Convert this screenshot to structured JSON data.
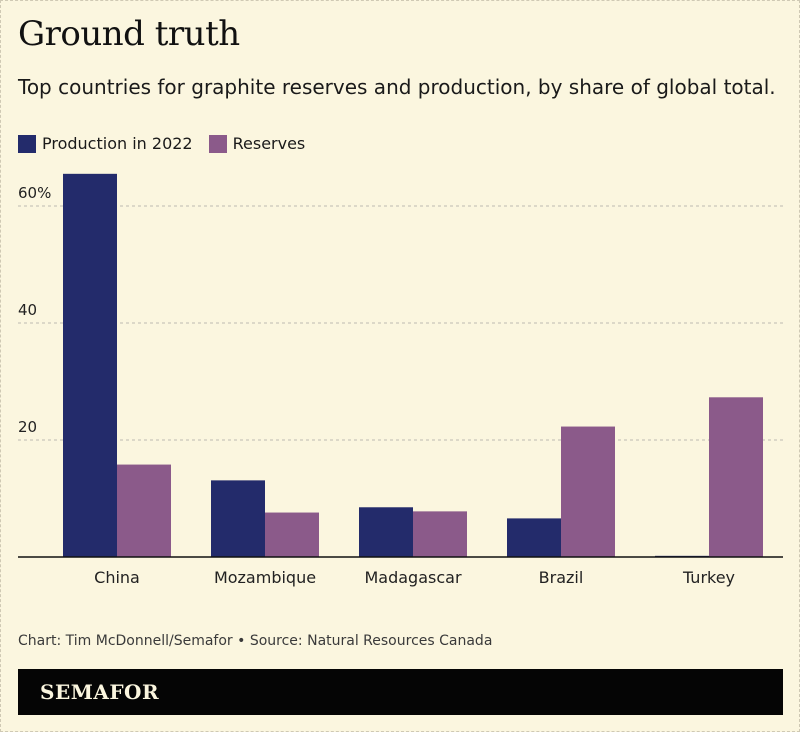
{
  "title": "Ground truth",
  "subtitle": "Top countries for graphite reserves and production, by share of global total.",
  "colors": {
    "background": "#fbf6df",
    "production": "#232b6b",
    "reserves": "#8b5a8a",
    "grid": "#bdbab0"
  },
  "legend": {
    "production_label": "Production in 2022",
    "reserves_label": "Reserves"
  },
  "credit": "Chart: Tim McDonnell/Semafor • Source: Natural Resources Canada",
  "brand": "SEMAFOR",
  "chart_data": {
    "type": "bar",
    "categories": [
      "China",
      "Mozambique",
      "Madagascar",
      "Brazil",
      "Turkey"
    ],
    "series": [
      {
        "name": "Production in 2022",
        "values": [
          65.5,
          13.1,
          8.5,
          6.6,
          0.2
        ]
      },
      {
        "name": "Reserves",
        "values": [
          15.8,
          7.6,
          7.8,
          22.3,
          27.3
        ]
      }
    ],
    "y_ticks": [
      {
        "value": 20,
        "label": "20"
      },
      {
        "value": 40,
        "label": "40"
      },
      {
        "value": 60,
        "label": "60%"
      }
    ],
    "ylim": [
      0,
      68
    ],
    "grid": true,
    "legend_position": "top-left",
    "xlabel": "",
    "ylabel": ""
  }
}
